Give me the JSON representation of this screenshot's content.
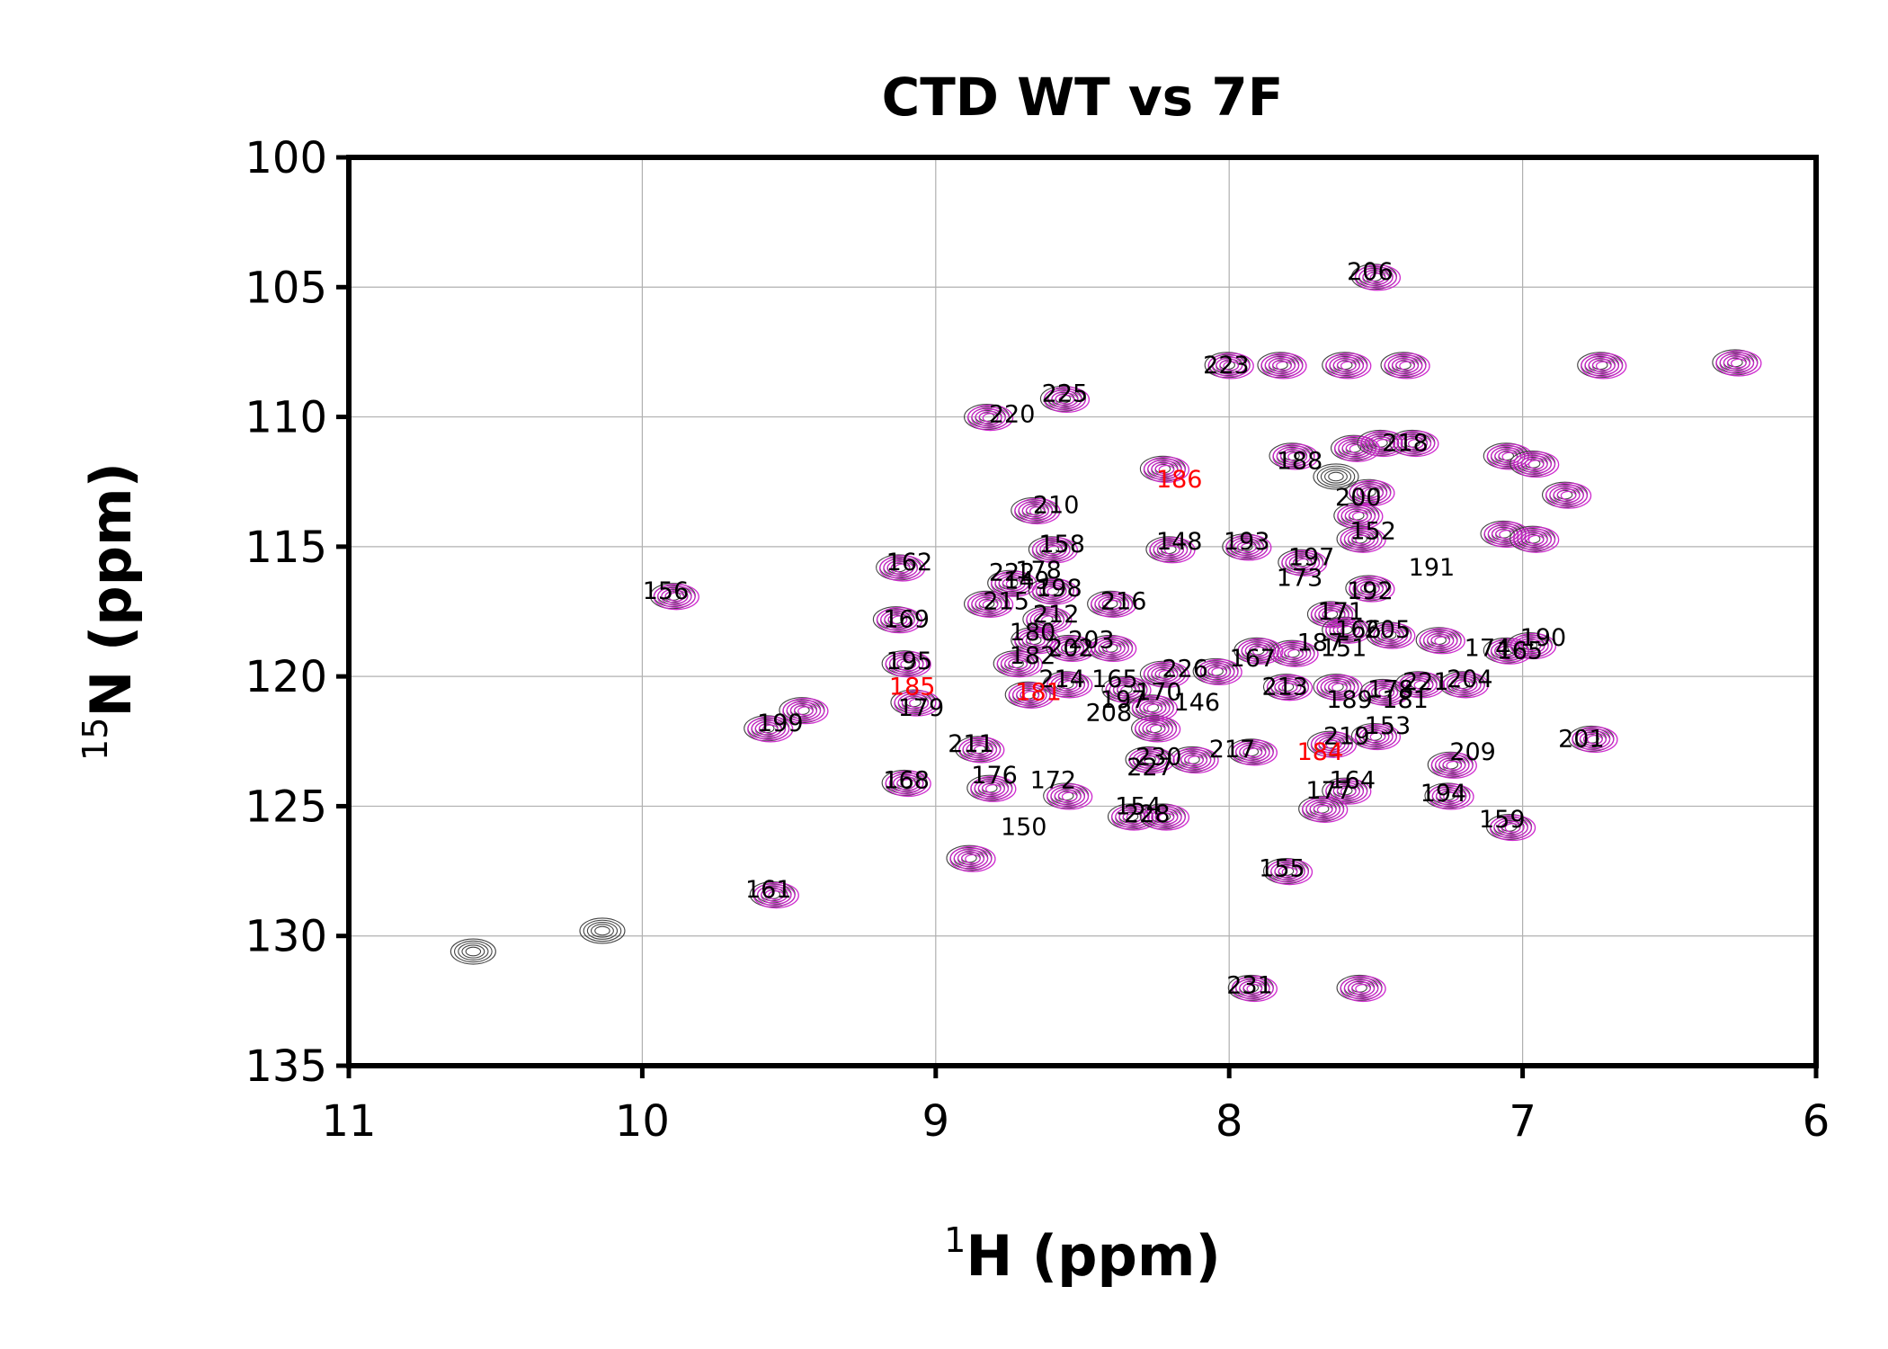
{
  "colors": {
    "wt": "#3a3a3a",
    "mut": "#cc22cc",
    "highlight": "#ff0000",
    "grid": "#b0b0b0"
  },
  "chart_data": {
    "type": "scatter",
    "subtype": "2D NMR 1H-15N HSQC overlay (contour peaks)",
    "title": "CTD WT vs 7F",
    "xlabel": {
      "sup": "1",
      "text": "H (ppm)"
    },
    "ylabel": {
      "sup": "15",
      "text": "N (ppm)"
    },
    "xlim": [
      11,
      6
    ],
    "ylim": [
      100,
      135
    ],
    "x_reversed": true,
    "y_reversed": true,
    "xticks": [
      11,
      10,
      9,
      8,
      7,
      6
    ],
    "yticks": [
      100,
      105,
      110,
      115,
      120,
      125,
      130,
      135
    ],
    "grid": true,
    "legend": "none",
    "peaks": [
      {
        "x": 7.5,
        "y": 104.6,
        "wt": true,
        "mut": true
      },
      {
        "x": 8.0,
        "y": 108.0,
        "wt": true,
        "mut": true
      },
      {
        "x": 7.82,
        "y": 108.0,
        "wt": true,
        "mut": true
      },
      {
        "x": 7.6,
        "y": 108.0,
        "wt": true,
        "mut": true
      },
      {
        "x": 7.4,
        "y": 108.0,
        "wt": true,
        "mut": true
      },
      {
        "x": 6.73,
        "y": 108.0,
        "wt": true,
        "mut": true
      },
      {
        "x": 6.27,
        "y": 107.9,
        "wt": true,
        "mut": true
      },
      {
        "x": 8.56,
        "y": 109.3,
        "wt": true,
        "mut": true
      },
      {
        "x": 8.82,
        "y": 110.0,
        "wt": true,
        "mut": true
      },
      {
        "x": 7.78,
        "y": 111.5,
        "wt": true,
        "mut": true
      },
      {
        "x": 7.57,
        "y": 111.2,
        "wt": true,
        "mut": true
      },
      {
        "x": 7.48,
        "y": 111.0,
        "wt": true,
        "mut": true
      },
      {
        "x": 7.37,
        "y": 111.0,
        "wt": true,
        "mut": true
      },
      {
        "x": 7.05,
        "y": 111.5,
        "wt": true,
        "mut": true
      },
      {
        "x": 6.96,
        "y": 111.8,
        "wt": true,
        "mut": true
      },
      {
        "x": 8.22,
        "y": 112.0,
        "wt": true,
        "mut": true
      },
      {
        "x": 7.63,
        "y": 112.3,
        "wt": true,
        "mut": false
      },
      {
        "x": 7.52,
        "y": 112.9,
        "wt": true,
        "mut": true
      },
      {
        "x": 6.85,
        "y": 113.0,
        "wt": true,
        "mut": true
      },
      {
        "x": 7.56,
        "y": 113.8,
        "wt": true,
        "mut": true
      },
      {
        "x": 8.66,
        "y": 113.6,
        "wt": true,
        "mut": true
      },
      {
        "x": 7.06,
        "y": 114.5,
        "wt": true,
        "mut": true
      },
      {
        "x": 7.55,
        "y": 114.7,
        "wt": true,
        "mut": true
      },
      {
        "x": 6.96,
        "y": 114.7,
        "wt": true,
        "mut": true
      },
      {
        "x": 8.6,
        "y": 115.1,
        "wt": true,
        "mut": true
      },
      {
        "x": 8.2,
        "y": 115.1,
        "wt": true,
        "mut": true
      },
      {
        "x": 7.94,
        "y": 115.0,
        "wt": true,
        "mut": true
      },
      {
        "x": 7.75,
        "y": 115.6,
        "wt": true,
        "mut": true
      },
      {
        "x": 9.12,
        "y": 115.8,
        "wt": true,
        "mut": true
      },
      {
        "x": 8.74,
        "y": 116.4,
        "wt": true,
        "mut": true
      },
      {
        "x": 8.6,
        "y": 116.7,
        "wt": true,
        "mut": true
      },
      {
        "x": 7.52,
        "y": 116.6,
        "wt": true,
        "mut": true
      },
      {
        "x": 9.89,
        "y": 116.9,
        "wt": true,
        "mut": true
      },
      {
        "x": 8.82,
        "y": 117.2,
        "wt": true,
        "mut": true
      },
      {
        "x": 8.4,
        "y": 117.2,
        "wt": true,
        "mut": true
      },
      {
        "x": 8.62,
        "y": 117.8,
        "wt": true,
        "mut": true
      },
      {
        "x": 9.13,
        "y": 117.8,
        "wt": true,
        "mut": true
      },
      {
        "x": 7.65,
        "y": 117.6,
        "wt": true,
        "mut": true
      },
      {
        "x": 7.6,
        "y": 118.2,
        "wt": true,
        "mut": true
      },
      {
        "x": 7.45,
        "y": 118.4,
        "wt": true,
        "mut": true
      },
      {
        "x": 7.28,
        "y": 118.6,
        "wt": true,
        "mut": true
      },
      {
        "x": 7.05,
        "y": 119.0,
        "wt": true,
        "mut": true
      },
      {
        "x": 6.97,
        "y": 118.8,
        "wt": true,
        "mut": true
      },
      {
        "x": 8.66,
        "y": 118.6,
        "wt": true,
        "mut": true
      },
      {
        "x": 8.54,
        "y": 118.9,
        "wt": true,
        "mut": true
      },
      {
        "x": 8.4,
        "y": 118.9,
        "wt": true,
        "mut": true
      },
      {
        "x": 7.78,
        "y": 119.1,
        "wt": true,
        "mut": true
      },
      {
        "x": 7.9,
        "y": 119.0,
        "wt": true,
        "mut": true
      },
      {
        "x": 8.72,
        "y": 119.5,
        "wt": true,
        "mut": true
      },
      {
        "x": 9.1,
        "y": 119.5,
        "wt": true,
        "mut": true
      },
      {
        "x": 8.22,
        "y": 119.9,
        "wt": true,
        "mut": true
      },
      {
        "x": 8.04,
        "y": 119.8,
        "wt": true,
        "mut": true
      },
      {
        "x": 8.55,
        "y": 120.3,
        "wt": true,
        "mut": true
      },
      {
        "x": 8.35,
        "y": 120.5,
        "wt": true,
        "mut": true
      },
      {
        "x": 7.8,
        "y": 120.4,
        "wt": true,
        "mut": true
      },
      {
        "x": 7.63,
        "y": 120.4,
        "wt": true,
        "mut": true
      },
      {
        "x": 7.47,
        "y": 120.6,
        "wt": true,
        "mut": true
      },
      {
        "x": 7.35,
        "y": 120.3,
        "wt": true,
        "mut": true
      },
      {
        "x": 7.2,
        "y": 120.3,
        "wt": true,
        "mut": true
      },
      {
        "x": 8.26,
        "y": 121.2,
        "wt": true,
        "mut": true
      },
      {
        "x": 8.68,
        "y": 120.7,
        "wt": true,
        "mut": true
      },
      {
        "x": 9.07,
        "y": 121.0,
        "wt": true,
        "mut": true
      },
      {
        "x": 9.45,
        "y": 121.3,
        "wt": true,
        "mut": true
      },
      {
        "x": 9.57,
        "y": 122.0,
        "wt": true,
        "mut": true
      },
      {
        "x": 8.25,
        "y": 122.0,
        "wt": true,
        "mut": true
      },
      {
        "x": 8.85,
        "y": 122.8,
        "wt": true,
        "mut": true
      },
      {
        "x": 8.27,
        "y": 123.2,
        "wt": true,
        "mut": true
      },
      {
        "x": 8.12,
        "y": 123.2,
        "wt": true,
        "mut": true
      },
      {
        "x": 7.92,
        "y": 122.9,
        "wt": true,
        "mut": true
      },
      {
        "x": 7.65,
        "y": 122.6,
        "wt": true,
        "mut": true
      },
      {
        "x": 7.5,
        "y": 122.3,
        "wt": true,
        "mut": true
      },
      {
        "x": 7.24,
        "y": 123.4,
        "wt": true,
        "mut": true
      },
      {
        "x": 6.76,
        "y": 122.4,
        "wt": true,
        "mut": true
      },
      {
        "x": 9.1,
        "y": 124.1,
        "wt": true,
        "mut": true
      },
      {
        "x": 8.81,
        "y": 124.3,
        "wt": true,
        "mut": true
      },
      {
        "x": 8.55,
        "y": 124.6,
        "wt": true,
        "mut": true
      },
      {
        "x": 7.6,
        "y": 124.4,
        "wt": true,
        "mut": true
      },
      {
        "x": 7.68,
        "y": 125.1,
        "wt": true,
        "mut": true
      },
      {
        "x": 7.25,
        "y": 124.6,
        "wt": true,
        "mut": true
      },
      {
        "x": 8.33,
        "y": 125.4,
        "wt": true,
        "mut": true
      },
      {
        "x": 8.22,
        "y": 125.4,
        "wt": true,
        "mut": true
      },
      {
        "x": 7.04,
        "y": 125.8,
        "wt": true,
        "mut": true
      },
      {
        "x": 8.88,
        "y": 127.0,
        "wt": true,
        "mut": true
      },
      {
        "x": 7.8,
        "y": 127.5,
        "wt": true,
        "mut": true
      },
      {
        "x": 9.55,
        "y": 128.4,
        "wt": true,
        "mut": true
      },
      {
        "x": 10.57,
        "y": 130.6,
        "wt": true,
        "mut": false
      },
      {
        "x": 10.13,
        "y": 129.8,
        "wt": true,
        "mut": false
      },
      {
        "x": 7.92,
        "y": 132.0,
        "wt": true,
        "mut": true
      },
      {
        "x": 7.55,
        "y": 132.0,
        "wt": true,
        "mut": true
      }
    ],
    "labels": [
      {
        "text": "206",
        "x": 7.52,
        "y": 104.4,
        "color": "black"
      },
      {
        "text": "223",
        "x": 8.01,
        "y": 108.0,
        "color": "black"
      },
      {
        "text": "225",
        "x": 8.56,
        "y": 109.1,
        "color": "black"
      },
      {
        "text": "220",
        "x": 8.74,
        "y": 109.9,
        "color": "black"
      },
      {
        "text": "218",
        "x": 7.4,
        "y": 111.0,
        "color": "black"
      },
      {
        "text": "188",
        "x": 7.76,
        "y": 111.7,
        "color": "black"
      },
      {
        "text": "186",
        "x": 8.17,
        "y": 112.4,
        "color": "red"
      },
      {
        "text": "200",
        "x": 7.56,
        "y": 113.1,
        "color": "black"
      },
      {
        "text": "210",
        "x": 8.59,
        "y": 113.4,
        "color": "black"
      },
      {
        "text": "152",
        "x": 7.51,
        "y": 114.4,
        "color": "black"
      },
      {
        "text": "158",
        "x": 8.57,
        "y": 114.9,
        "color": "black"
      },
      {
        "text": "148",
        "x": 8.17,
        "y": 114.8,
        "color": "black"
      },
      {
        "text": "193",
        "x": 7.94,
        "y": 114.8,
        "color": "black"
      },
      {
        "text": "197",
        "x": 7.72,
        "y": 115.4,
        "color": "black"
      },
      {
        "text": "191",
        "x": 7.31,
        "y": 115.8,
        "color": "black"
      },
      {
        "text": "162",
        "x": 9.09,
        "y": 115.6,
        "color": "black"
      },
      {
        "text": "222",
        "x": 8.74,
        "y": 116.0,
        "color": "black"
      },
      {
        "text": "178",
        "x": 8.65,
        "y": 115.9,
        "color": "black"
      },
      {
        "text": "173",
        "x": 7.76,
        "y": 116.2,
        "color": "black"
      },
      {
        "text": "149",
        "x": 8.69,
        "y": 116.3,
        "color": "black"
      },
      {
        "text": "198",
        "x": 8.58,
        "y": 116.6,
        "color": "black"
      },
      {
        "text": "156",
        "x": 9.92,
        "y": 116.7,
        "color": "black"
      },
      {
        "text": "192",
        "x": 7.52,
        "y": 116.7,
        "color": "black"
      },
      {
        "text": "215",
        "x": 8.76,
        "y": 117.1,
        "color": "black"
      },
      {
        "text": "216",
        "x": 8.36,
        "y": 117.1,
        "color": "black"
      },
      {
        "text": "212",
        "x": 8.59,
        "y": 117.6,
        "color": "black"
      },
      {
        "text": "171",
        "x": 7.62,
        "y": 117.5,
        "color": "black"
      },
      {
        "text": "169",
        "x": 9.1,
        "y": 117.8,
        "color": "black"
      },
      {
        "text": "166",
        "x": 7.56,
        "y": 118.2,
        "color": "black"
      },
      {
        "text": "205",
        "x": 7.46,
        "y": 118.2,
        "color": "black"
      },
      {
        "text": "180",
        "x": 8.67,
        "y": 118.3,
        "color": "black"
      },
      {
        "text": "190",
        "x": 6.93,
        "y": 118.5,
        "color": "black"
      },
      {
        "text": "203",
        "x": 8.47,
        "y": 118.6,
        "color": "black"
      },
      {
        "text": "187",
        "x": 7.69,
        "y": 118.7,
        "color": "black"
      },
      {
        "text": "174",
        "x": 7.12,
        "y": 118.9,
        "color": "black"
      },
      {
        "text": "151",
        "x": 7.61,
        "y": 118.9,
        "color": "black"
      },
      {
        "text": "165",
        "x": 7.01,
        "y": 119.0,
        "color": "black"
      },
      {
        "text": "202",
        "x": 8.54,
        "y": 118.9,
        "color": "black"
      },
      {
        "text": "182",
        "x": 8.67,
        "y": 119.2,
        "color": "black"
      },
      {
        "text": "167",
        "x": 7.92,
        "y": 119.3,
        "color": "black"
      },
      {
        "text": "195",
        "x": 9.09,
        "y": 119.4,
        "color": "black"
      },
      {
        "text": "226",
        "x": 8.15,
        "y": 119.7,
        "color": "black"
      },
      {
        "text": "214",
        "x": 8.57,
        "y": 120.1,
        "color": "black"
      },
      {
        "text": "165",
        "x": 8.39,
        "y": 120.1,
        "color": "black"
      },
      {
        "text": "204",
        "x": 7.18,
        "y": 120.1,
        "color": "black"
      },
      {
        "text": "221",
        "x": 7.33,
        "y": 120.2,
        "color": "black"
      },
      {
        "text": "213",
        "x": 7.81,
        "y": 120.4,
        "color": "black"
      },
      {
        "text": "185",
        "x": 9.08,
        "y": 120.4,
        "color": "red"
      },
      {
        "text": "181",
        "x": 8.65,
        "y": 120.6,
        "color": "red"
      },
      {
        "text": "170",
        "x": 8.24,
        "y": 120.6,
        "color": "black"
      },
      {
        "text": "178",
        "x": 7.45,
        "y": 120.5,
        "color": "black"
      },
      {
        "text": "189",
        "x": 7.59,
        "y": 120.9,
        "color": "black"
      },
      {
        "text": "181",
        "x": 7.4,
        "y": 120.9,
        "color": "black"
      },
      {
        "text": "197",
        "x": 8.36,
        "y": 120.9,
        "color": "black"
      },
      {
        "text": "146",
        "x": 8.11,
        "y": 121.0,
        "color": "black"
      },
      {
        "text": "179",
        "x": 9.05,
        "y": 121.2,
        "color": "black"
      },
      {
        "text": "208",
        "x": 8.41,
        "y": 121.4,
        "color": "black"
      },
      {
        "text": "199",
        "x": 9.53,
        "y": 121.8,
        "color": "black"
      },
      {
        "text": "153",
        "x": 7.46,
        "y": 121.9,
        "color": "black"
      },
      {
        "text": "219",
        "x": 7.6,
        "y": 122.3,
        "color": "black"
      },
      {
        "text": "201",
        "x": 6.8,
        "y": 122.4,
        "color": "black"
      },
      {
        "text": "211",
        "x": 8.88,
        "y": 122.6,
        "color": "black"
      },
      {
        "text": "217",
        "x": 7.99,
        "y": 122.8,
        "color": "black"
      },
      {
        "text": "209",
        "x": 7.17,
        "y": 122.9,
        "color": "black"
      },
      {
        "text": "184",
        "x": 7.69,
        "y": 122.9,
        "color": "red"
      },
      {
        "text": "230",
        "x": 8.24,
        "y": 123.1,
        "color": "black"
      },
      {
        "text": "227",
        "x": 8.27,
        "y": 123.5,
        "color": "black"
      },
      {
        "text": "176",
        "x": 8.8,
        "y": 123.8,
        "color": "black"
      },
      {
        "text": "168",
        "x": 9.1,
        "y": 124.0,
        "color": "black"
      },
      {
        "text": "172",
        "x": 8.6,
        "y": 124.0,
        "color": "black"
      },
      {
        "text": "164",
        "x": 7.58,
        "y": 124.0,
        "color": "black"
      },
      {
        "text": "177",
        "x": 7.66,
        "y": 124.4,
        "color": "black"
      },
      {
        "text": "194",
        "x": 7.27,
        "y": 124.5,
        "color": "black"
      },
      {
        "text": "154",
        "x": 8.31,
        "y": 125.0,
        "color": "black"
      },
      {
        "text": "228",
        "x": 8.28,
        "y": 125.3,
        "color": "black"
      },
      {
        "text": "159",
        "x": 7.07,
        "y": 125.5,
        "color": "black"
      },
      {
        "text": "150",
        "x": 8.7,
        "y": 125.8,
        "color": "black"
      },
      {
        "text": "155",
        "x": 7.82,
        "y": 127.4,
        "color": "black"
      },
      {
        "text": "161",
        "x": 9.57,
        "y": 128.2,
        "color": "black"
      },
      {
        "text": "231",
        "x": 7.93,
        "y": 131.9,
        "color": "black"
      }
    ]
  }
}
